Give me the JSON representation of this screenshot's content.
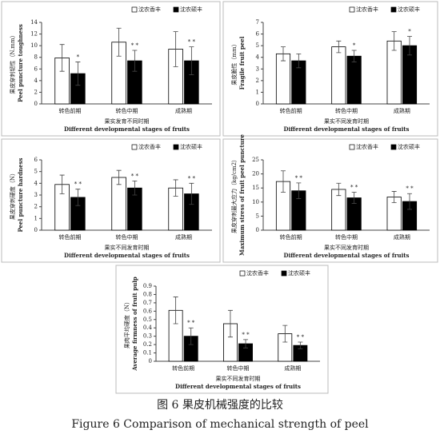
{
  "chart_data": [
    {
      "type": "bar",
      "ylabel": "果皮穿刺韧性（N.mm）",
      "ylabel_en": "Peel puncture toughness",
      "xlabel": "果实发育不同时期",
      "xlabel_en": "Different developmental stages of fruits",
      "categories": [
        "转色前期",
        "转色中期",
        "成熟期"
      ],
      "series": [
        {
          "name": "沈农香丰",
          "color": "#ffffff",
          "values": [
            7.9,
            10.6,
            9.4
          ],
          "errors": [
            2.3,
            2.4,
            3.0
          ]
        },
        {
          "name": "沈农硕丰",
          "color": "#000000",
          "values": [
            5.2,
            7.4,
            7.4
          ],
          "errors": [
            2.0,
            1.8,
            2.4
          ],
          "annotations": [
            "*",
            "* *",
            "* *"
          ]
        }
      ],
      "ylim": [
        0,
        14
      ],
      "yticks": [
        0,
        2,
        4,
        6,
        8,
        10,
        12,
        14
      ],
      "legend": "upper right"
    },
    {
      "type": "bar",
      "ylabel": "果皮脆性（mm）",
      "ylabel_en": "Fragile fruit peel",
      "xlabel": "果实不同发育时期",
      "xlabel_en": "Different developmental stages of fruits",
      "categories": [
        "转色前期",
        "转色中期",
        "成熟期"
      ],
      "series": [
        {
          "name": "沈农香丰",
          "color": "#ffffff",
          "values": [
            4.3,
            4.9,
            5.4
          ],
          "errors": [
            0.6,
            0.5,
            0.8
          ]
        },
        {
          "name": "沈农硕丰",
          "color": "#000000",
          "values": [
            3.7,
            4.1,
            5.0
          ],
          "errors": [
            0.6,
            0.5,
            0.8
          ],
          "annotations": [
            null,
            "*",
            "*"
          ]
        }
      ],
      "ylim": [
        0,
        7
      ],
      "yticks": [
        0,
        1,
        2,
        3,
        4,
        5,
        6,
        7
      ],
      "legend": "upper right"
    },
    {
      "type": "bar",
      "ylabel": "果皮穿刺硬度（N）",
      "ylabel_en": "Peel puncture hardness",
      "xlabel": "果实不同发育时期",
      "xlabel_en": "Different developmental stages of fruits",
      "categories": [
        "转色前期",
        "转色中期",
        "成熟期"
      ],
      "series": [
        {
          "name": "沈农香丰",
          "color": "#ffffff",
          "values": [
            3.9,
            4.5,
            3.6
          ],
          "errors": [
            0.8,
            0.6,
            0.7
          ]
        },
        {
          "name": "沈农硕丰",
          "color": "#000000",
          "values": [
            2.8,
            3.6,
            3.1
          ],
          "errors": [
            0.7,
            0.6,
            0.9
          ],
          "annotations": [
            "* *",
            "* *",
            "* *"
          ]
        }
      ],
      "ylim": [
        0,
        6
      ],
      "yticks": [
        0,
        1,
        2,
        3,
        4,
        5,
        6
      ],
      "legend": "upper right"
    },
    {
      "type": "bar",
      "ylabel": "果皮穿刺最大应力（kg/cm2）",
      "ylabel_en": "Maximum stress of fruit peel puncture",
      "xlabel": "果实不同发育时期",
      "xlabel_en": "Different developmental stages of fruits",
      "categories": [
        "转色前期",
        "转色中期",
        "成熟期"
      ],
      "series": [
        {
          "name": "沈农香丰",
          "color": "#ffffff",
          "values": [
            17.3,
            14.5,
            11.8
          ],
          "errors": [
            3.8,
            2.2,
            2.0
          ]
        },
        {
          "name": "沈农硕丰",
          "color": "#000000",
          "values": [
            14.0,
            11.5,
            10.2
          ],
          "errors": [
            2.8,
            2.0,
            2.8
          ],
          "annotations": [
            "* *",
            "* *",
            "* *"
          ]
        }
      ],
      "ylim": [
        0,
        25
      ],
      "yticks": [
        0,
        5,
        10,
        15,
        20,
        25
      ],
      "legend": "upper right"
    },
    {
      "type": "bar",
      "ylabel": "果肉平均硬度（N）",
      "ylabel_en": "Average firmness of fruit pulp",
      "xlabel": "果实不同发育时期",
      "xlabel_en": "Different developmental stages of fruits",
      "categories": [
        "转色前期",
        "转色中期",
        "成熟期"
      ],
      "series": [
        {
          "name": "沈农香丰",
          "color": "#ffffff",
          "values": [
            0.61,
            0.45,
            0.33
          ],
          "errors": [
            0.16,
            0.16,
            0.1
          ]
        },
        {
          "name": "沈农硕丰",
          "color": "#000000",
          "values": [
            0.3,
            0.21,
            0.19
          ],
          "errors": [
            0.1,
            0.05,
            0.04
          ],
          "annotations": [
            "* *",
            "* *",
            "* *"
          ]
        }
      ],
      "ylim": [
        0,
        0.9
      ],
      "yticks": [
        0,
        0.1,
        0.2,
        0.3,
        0.4,
        0.5,
        0.6,
        0.7,
        0.8,
        0.9
      ],
      "legend": "upper right"
    }
  ],
  "caption": "图 6  果皮机械强度的比较",
  "caption_en": "Figure 6 Comparison of mechanical strength of peel"
}
